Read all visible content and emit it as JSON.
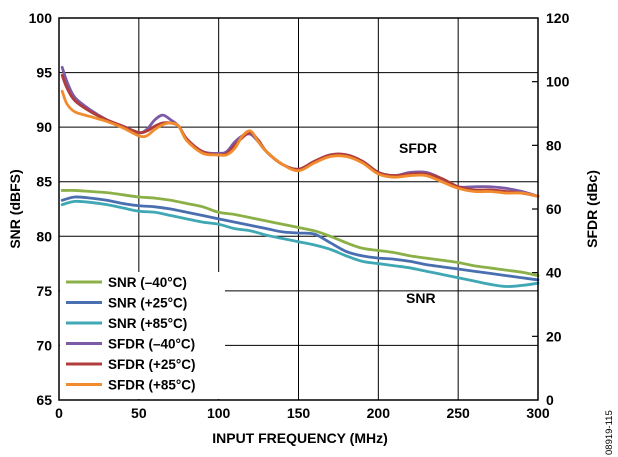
{
  "chart_data": {
    "type": "line",
    "xlabel": "INPUT FREQUENCY (MHz)",
    "ylabel_left": "SNR (dBFS)",
    "ylabel_right": "SFDR (dBc)",
    "xlim": [
      0,
      300
    ],
    "ylim_left": [
      65,
      100
    ],
    "ylim_right": [
      0,
      120
    ],
    "x_ticks": [
      0,
      50,
      100,
      150,
      200,
      250,
      300
    ],
    "y_left_ticks": [
      65,
      70,
      75,
      80,
      85,
      90,
      95,
      100
    ],
    "y_right_ticks": [
      0,
      20,
      40,
      60,
      80,
      100,
      120
    ],
    "grid": true,
    "legend_position": "bottom-left",
    "annotations": [
      "SFDR",
      "SNR"
    ],
    "figure_id": "08919-115",
    "series": [
      {
        "name": "SNR (–40°C)",
        "axis": "left",
        "color": "#8cb048",
        "x": [
          2,
          10,
          20,
          30,
          40,
          50,
          60,
          70,
          80,
          90,
          100,
          110,
          120,
          130,
          140,
          150,
          160,
          170,
          180,
          190,
          200,
          210,
          220,
          230,
          240,
          250,
          260,
          270,
          280,
          290,
          300
        ],
        "y": [
          84.2,
          84.2,
          84.1,
          84.0,
          83.8,
          83.6,
          83.5,
          83.3,
          83.0,
          82.7,
          82.2,
          82.0,
          81.7,
          81.4,
          81.1,
          80.8,
          80.5,
          80.0,
          79.4,
          78.9,
          78.7,
          78.5,
          78.2,
          78.0,
          77.8,
          77.6,
          77.3,
          77.1,
          76.9,
          76.7,
          76.4
        ]
      },
      {
        "name": "SNR (+25°C)",
        "axis": "left",
        "color": "#4a6fb0",
        "x": [
          2,
          10,
          20,
          30,
          40,
          50,
          60,
          70,
          80,
          90,
          100,
          110,
          120,
          130,
          140,
          150,
          160,
          170,
          180,
          190,
          200,
          210,
          220,
          230,
          240,
          250,
          260,
          270,
          280,
          290,
          300
        ],
        "y": [
          83.3,
          83.6,
          83.5,
          83.3,
          83.0,
          82.8,
          82.7,
          82.5,
          82.2,
          81.9,
          81.6,
          81.3,
          81.0,
          80.7,
          80.4,
          80.3,
          80.2,
          79.4,
          78.6,
          78.2,
          78.0,
          77.9,
          77.7,
          77.4,
          77.2,
          77.0,
          76.8,
          76.6,
          76.4,
          76.2,
          76.0
        ]
      },
      {
        "name": "SNR (+85°C)",
        "axis": "left",
        "color": "#3fa8b4",
        "x": [
          2,
          10,
          20,
          30,
          40,
          50,
          60,
          70,
          80,
          90,
          100,
          110,
          120,
          130,
          140,
          150,
          160,
          170,
          180,
          190,
          200,
          210,
          220,
          230,
          240,
          250,
          260,
          270,
          280,
          290,
          300
        ],
        "y": [
          82.9,
          83.2,
          83.1,
          82.9,
          82.6,
          82.3,
          82.2,
          81.9,
          81.6,
          81.3,
          81.1,
          80.7,
          80.5,
          80.1,
          79.8,
          79.5,
          79.2,
          78.8,
          78.2,
          77.7,
          77.5,
          77.3,
          77.1,
          76.8,
          76.5,
          76.2,
          75.9,
          75.6,
          75.4,
          75.5,
          75.7
        ]
      },
      {
        "name": "SFDR (–40°C)",
        "axis": "right",
        "color": "#7d5aa6",
        "x": [
          2,
          5,
          10,
          20,
          30,
          40,
          50,
          55,
          60,
          65,
          70,
          75,
          80,
          90,
          100,
          105,
          110,
          115,
          120,
          125,
          130,
          140,
          150,
          160,
          170,
          180,
          190,
          200,
          210,
          220,
          230,
          240,
          250,
          260,
          270,
          280,
          290,
          300
        ],
        "y": [
          104.5,
          100,
          95,
          91,
          88,
          86,
          84,
          85,
          88,
          89.5,
          88,
          86,
          82,
          78,
          77.5,
          78,
          81,
          83,
          83.5,
          81,
          78,
          74,
          72.5,
          75,
          77,
          77,
          75,
          71.5,
          70.5,
          71.5,
          71.5,
          69.5,
          67,
          67,
          67,
          66.5,
          65.5,
          64
        ]
      },
      {
        "name": "SFDR (+25°C)",
        "axis": "right",
        "color": "#b03c3c",
        "x": [
          2,
          5,
          10,
          20,
          30,
          40,
          50,
          55,
          60,
          65,
          70,
          75,
          80,
          90,
          100,
          105,
          110,
          115,
          120,
          125,
          130,
          140,
          150,
          160,
          170,
          180,
          190,
          200,
          210,
          220,
          230,
          240,
          250,
          260,
          270,
          280,
          290,
          300
        ],
        "y": [
          102,
          98,
          94,
          90.5,
          88,
          86,
          84,
          84.5,
          86,
          87,
          87,
          86,
          82,
          78,
          77,
          77.5,
          80,
          82.5,
          84,
          81.5,
          78,
          74,
          72.5,
          75,
          77,
          77,
          75,
          71.5,
          70.5,
          71,
          71,
          69.5,
          67,
          66,
          66,
          65.5,
          65,
          64
        ]
      },
      {
        "name": "SFDR (+85°C)",
        "axis": "right",
        "color": "#f08c2e",
        "x": [
          2,
          5,
          10,
          20,
          30,
          40,
          50,
          55,
          60,
          65,
          70,
          75,
          80,
          90,
          100,
          105,
          110,
          115,
          120,
          125,
          130,
          140,
          150,
          160,
          170,
          180,
          190,
          200,
          210,
          220,
          230,
          240,
          250,
          260,
          270,
          280,
          290,
          300
        ],
        "y": [
          97,
          93,
          90.5,
          89,
          87.5,
          85.5,
          83,
          83,
          85,
          86.5,
          87,
          86,
          81.5,
          77.5,
          77,
          77,
          79,
          83,
          84.5,
          81,
          78,
          74,
          72,
          74.5,
          76.5,
          76.5,
          74.5,
          71,
          70,
          70.5,
          70.5,
          68.5,
          66.5,
          65.5,
          65.5,
          65,
          65,
          64
        ]
      }
    ]
  }
}
